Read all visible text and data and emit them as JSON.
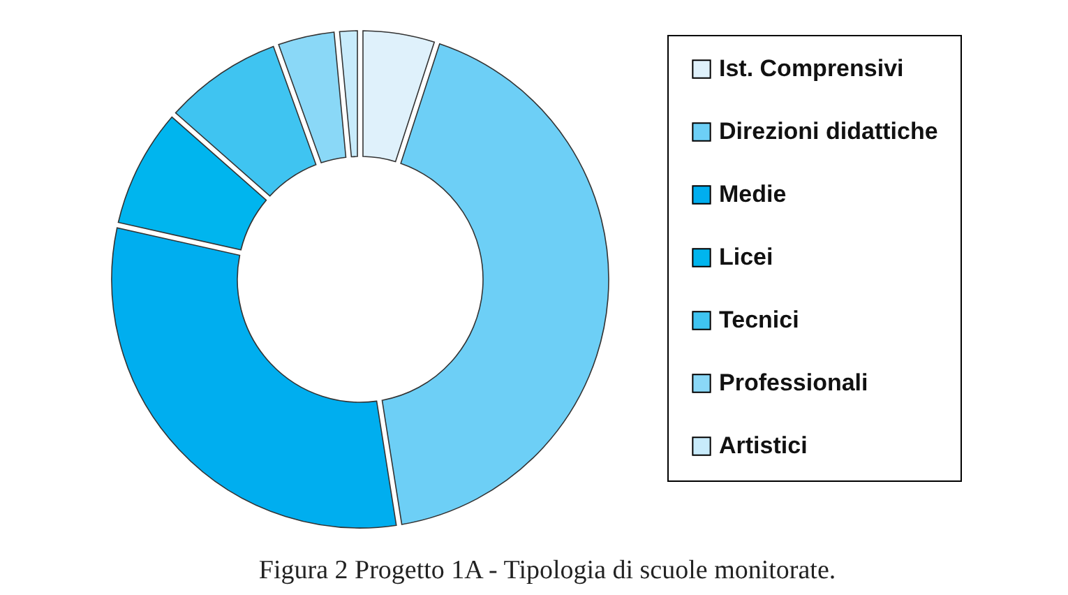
{
  "chart_data": {
    "type": "donut",
    "categories": [
      "Ist. Comprensivi",
      "Direzioni didattiche",
      "Medie",
      "Licei",
      "Tecnici",
      "Professionali",
      "Artistici"
    ],
    "values": [
      5,
      42.5,
      31,
      8,
      8,
      4,
      1.5
    ],
    "colors": [
      "#dff1fb",
      "#6dcff6",
      "#00aeef",
      "#00b5ee",
      "#3fc4f1",
      "#8ad8f7",
      "#c8ebfb"
    ],
    "legend": "right",
    "annotations": [
      "Figura 2  Progetto 1A - Tipologia di scuole monitorate."
    ]
  }
}
